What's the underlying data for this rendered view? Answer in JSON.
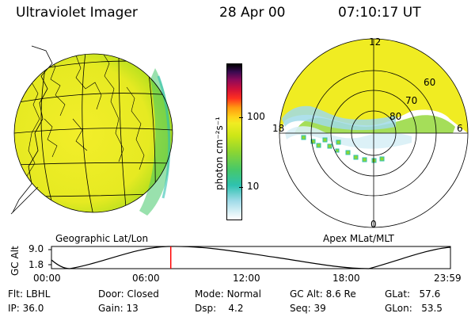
{
  "header": {
    "title": "Ultraviolet Imager",
    "date": "28 Apr 00",
    "time": "07:10:17 UT"
  },
  "left_panel": {
    "caption": "Geographic Lat/Lon"
  },
  "colorbar": {
    "unit_label": "photon cm⁻²s⁻¹",
    "ticks": [
      "100",
      "10"
    ]
  },
  "polar_panel": {
    "caption": "Apex MLat/MLT",
    "mlt_labels": {
      "top": "12",
      "left": "18",
      "right": "6",
      "bottom": "0"
    },
    "lat_labels": [
      "60",
      "70",
      "80"
    ]
  },
  "altitude_plot": {
    "ylabel": "GC Alt",
    "y_ticks": [
      "9.0",
      "1.8"
    ],
    "x_ticks": [
      "00:00",
      "06:00",
      "12:00",
      "18:00",
      "23:59"
    ],
    "marker_fraction_of_day": 0.299
  },
  "info": {
    "rows": [
      [
        {
          "label": "Flt:",
          "value": "LBHL"
        },
        {
          "label": "Door:",
          "value": "Closed"
        },
        {
          "label": "Mode:",
          "value": "Normal"
        },
        {
          "label": "GC Alt:",
          "value": "8.6 Re"
        },
        {
          "label": "GLat:",
          "value": "57.6"
        }
      ],
      [
        {
          "label": "IP:",
          "value": "36.0"
        },
        {
          "label": "Gain:",
          "value": "13"
        },
        {
          "label": "Dsp:",
          "value": "4.2"
        },
        {
          "label": "Seq:",
          "value": "39"
        },
        {
          "label": "GLon:",
          "value": "53.5"
        }
      ]
    ]
  },
  "colors": {
    "glow_yellow": "#f0ec22",
    "glow_green": "#8fd630",
    "glow_cyan": "#2ec2b0",
    "marker_red": "#ff0000"
  }
}
